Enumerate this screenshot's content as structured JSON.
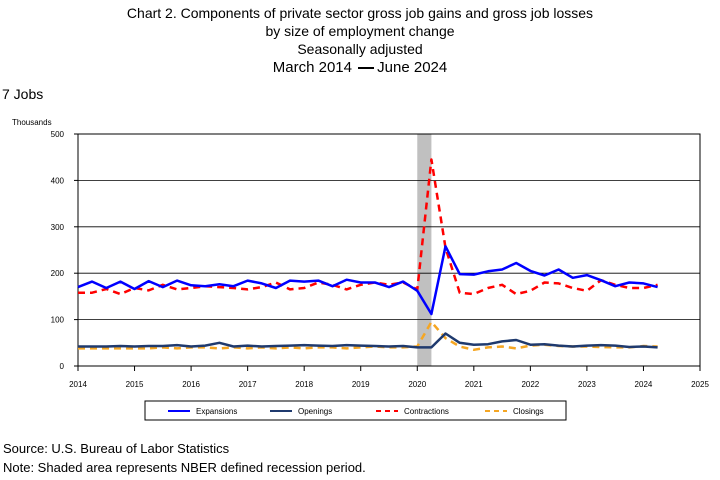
{
  "header": {
    "title_line1": "Chart 2. Components of private sector gross job gains and gross job losses",
    "title_line2": "by size of employment change",
    "title_line3": "Seasonally adjusted",
    "period_start": "March 2014",
    "period_end": "June 2024"
  },
  "subheading": "7 Jobs",
  "footer": {
    "source": "Source: U.S. Bureau of Labor Statistics",
    "note": "Note: Shaded area represents NBER defined recession period."
  },
  "colors": {
    "expansions": "#0000ff",
    "openings": "#1f3a6e",
    "contractions": "#ff0000",
    "closings": "#f5a623",
    "recession": "#c0c0c0"
  },
  "chart_data": {
    "type": "line",
    "ylabel": "Thousands",
    "xlabel": "",
    "ylim": [
      0,
      500
    ],
    "yticks": [
      0,
      100,
      200,
      300,
      400,
      500
    ],
    "xlim": [
      2014,
      2025
    ],
    "xticks": [
      "2014",
      "2015",
      "2016",
      "2017",
      "2018",
      "2019",
      "2020",
      "2021",
      "2022",
      "2023",
      "2024",
      "2025"
    ],
    "grid": true,
    "legend_position": "bottom",
    "recession": {
      "start": "2020-Q1",
      "end": "2020-Q2"
    },
    "x": [
      "2014-Q1",
      "2014-Q2",
      "2014-Q3",
      "2014-Q4",
      "2015-Q1",
      "2015-Q2",
      "2015-Q3",
      "2015-Q4",
      "2016-Q1",
      "2016-Q2",
      "2016-Q3",
      "2016-Q4",
      "2017-Q1",
      "2017-Q2",
      "2017-Q3",
      "2017-Q4",
      "2018-Q1",
      "2018-Q2",
      "2018-Q3",
      "2018-Q4",
      "2019-Q1",
      "2019-Q2",
      "2019-Q3",
      "2019-Q4",
      "2020-Q1",
      "2020-Q2",
      "2020-Q3",
      "2020-Q4",
      "2021-Q1",
      "2021-Q2",
      "2021-Q3",
      "2021-Q4",
      "2022-Q1",
      "2022-Q2",
      "2022-Q3",
      "2022-Q4",
      "2023-Q1",
      "2023-Q2",
      "2023-Q3",
      "2023-Q4",
      "2024-Q1",
      "2024-Q2"
    ],
    "series": [
      {
        "name": "Expansions",
        "style": "solid",
        "values": [
          170,
          182,
          168,
          182,
          166,
          183,
          170,
          184,
          174,
          172,
          176,
          172,
          184,
          178,
          168,
          184,
          182,
          184,
          172,
          186,
          180,
          180,
          170,
          182,
          162,
          112,
          258,
          198,
          197,
          204,
          208,
          222,
          205,
          195,
          208,
          190,
          196,
          185,
          172,
          180,
          178,
          170
        ]
      },
      {
        "name": "Openings",
        "style": "solid",
        "values": [
          42,
          42,
          42,
          43,
          42,
          43,
          43,
          45,
          42,
          44,
          50,
          42,
          44,
          42,
          43,
          44,
          45,
          44,
          43,
          45,
          44,
          43,
          42,
          43,
          40,
          40,
          70,
          50,
          46,
          47,
          53,
          56,
          46,
          47,
          44,
          42,
          44,
          45,
          44,
          41,
          42,
          40
        ]
      },
      {
        "name": "Contractions",
        "style": "dashed",
        "values": [
          158,
          158,
          166,
          155,
          168,
          163,
          175,
          165,
          168,
          172,
          170,
          168,
          165,
          170,
          180,
          165,
          168,
          180,
          175,
          165,
          175,
          180,
          175,
          180,
          165,
          445,
          255,
          158,
          155,
          168,
          175,
          155,
          162,
          180,
          178,
          168,
          162,
          185,
          175,
          168,
          168,
          175
        ]
      },
      {
        "name": "Closings",
        "style": "dashed",
        "values": [
          38,
          38,
          38,
          38,
          38,
          38,
          40,
          38,
          40,
          40,
          38,
          40,
          38,
          40,
          38,
          40,
          38,
          40,
          40,
          38,
          40,
          42,
          40,
          40,
          42,
          95,
          60,
          42,
          35,
          40,
          42,
          38,
          44,
          46,
          43,
          42,
          42,
          41,
          40,
          40,
          43,
          42
        ]
      }
    ]
  }
}
